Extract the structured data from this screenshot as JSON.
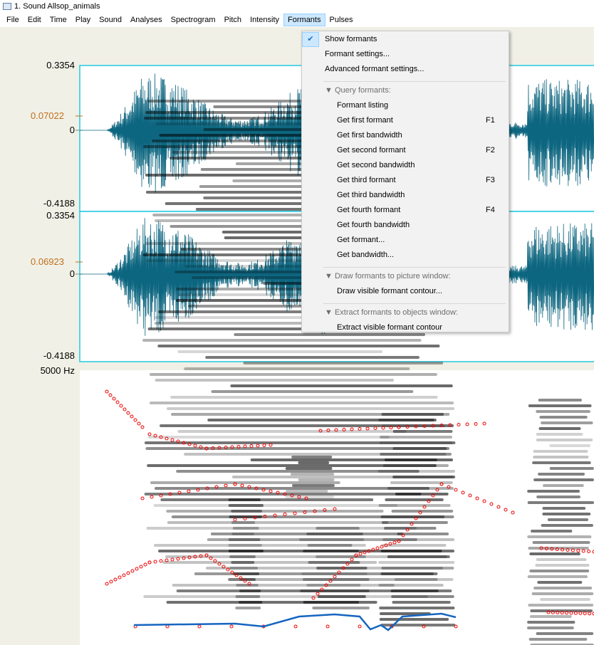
{
  "window": {
    "title": "1. Sound Allsop_animals"
  },
  "menu_bar": [
    "File",
    "Edit",
    "Time",
    "Play",
    "Sound",
    "Analyses",
    "Spectrogram",
    "Pitch",
    "Intensity",
    "Formants",
    "Pulses"
  ],
  "formants_menu": {
    "items": [
      {
        "label": "Show formants",
        "checked": true
      },
      {
        "label": "Formant settings..."
      },
      {
        "label": "Advanced formant settings..."
      }
    ],
    "sections": [
      {
        "heading": "▼ Query formants:",
        "items": [
          {
            "label": "Formant listing"
          },
          {
            "label": "Get first formant",
            "shortcut": "F1"
          },
          {
            "label": "Get first bandwidth"
          },
          {
            "label": "Get second formant",
            "shortcut": "F2"
          },
          {
            "label": "Get second bandwidth"
          },
          {
            "label": "Get third formant",
            "shortcut": "F3"
          },
          {
            "label": "Get third bandwidth"
          },
          {
            "label": "Get fourth formant",
            "shortcut": "F4"
          },
          {
            "label": "Get fourth bandwidth"
          },
          {
            "label": "Get formant..."
          },
          {
            "label": "Get bandwidth..."
          }
        ]
      },
      {
        "heading": "▼ Draw formants to picture window:",
        "items": [
          {
            "label": "Draw visible formant contour..."
          }
        ]
      },
      {
        "heading": "▼ Extract formants to objects window:",
        "items": [
          {
            "label": "Extract visible formant contour"
          }
        ]
      }
    ]
  },
  "waveform": {
    "channels": [
      {
        "max": "0.3354",
        "cursor": "0.07022",
        "zero": "0",
        "min": "-0.4188"
      },
      {
        "max": "0.3354",
        "cursor": "0.06923",
        "zero": "0",
        "min": "-0.4188"
      }
    ]
  },
  "spectrogram": {
    "top_label": "5000 Hz"
  }
}
